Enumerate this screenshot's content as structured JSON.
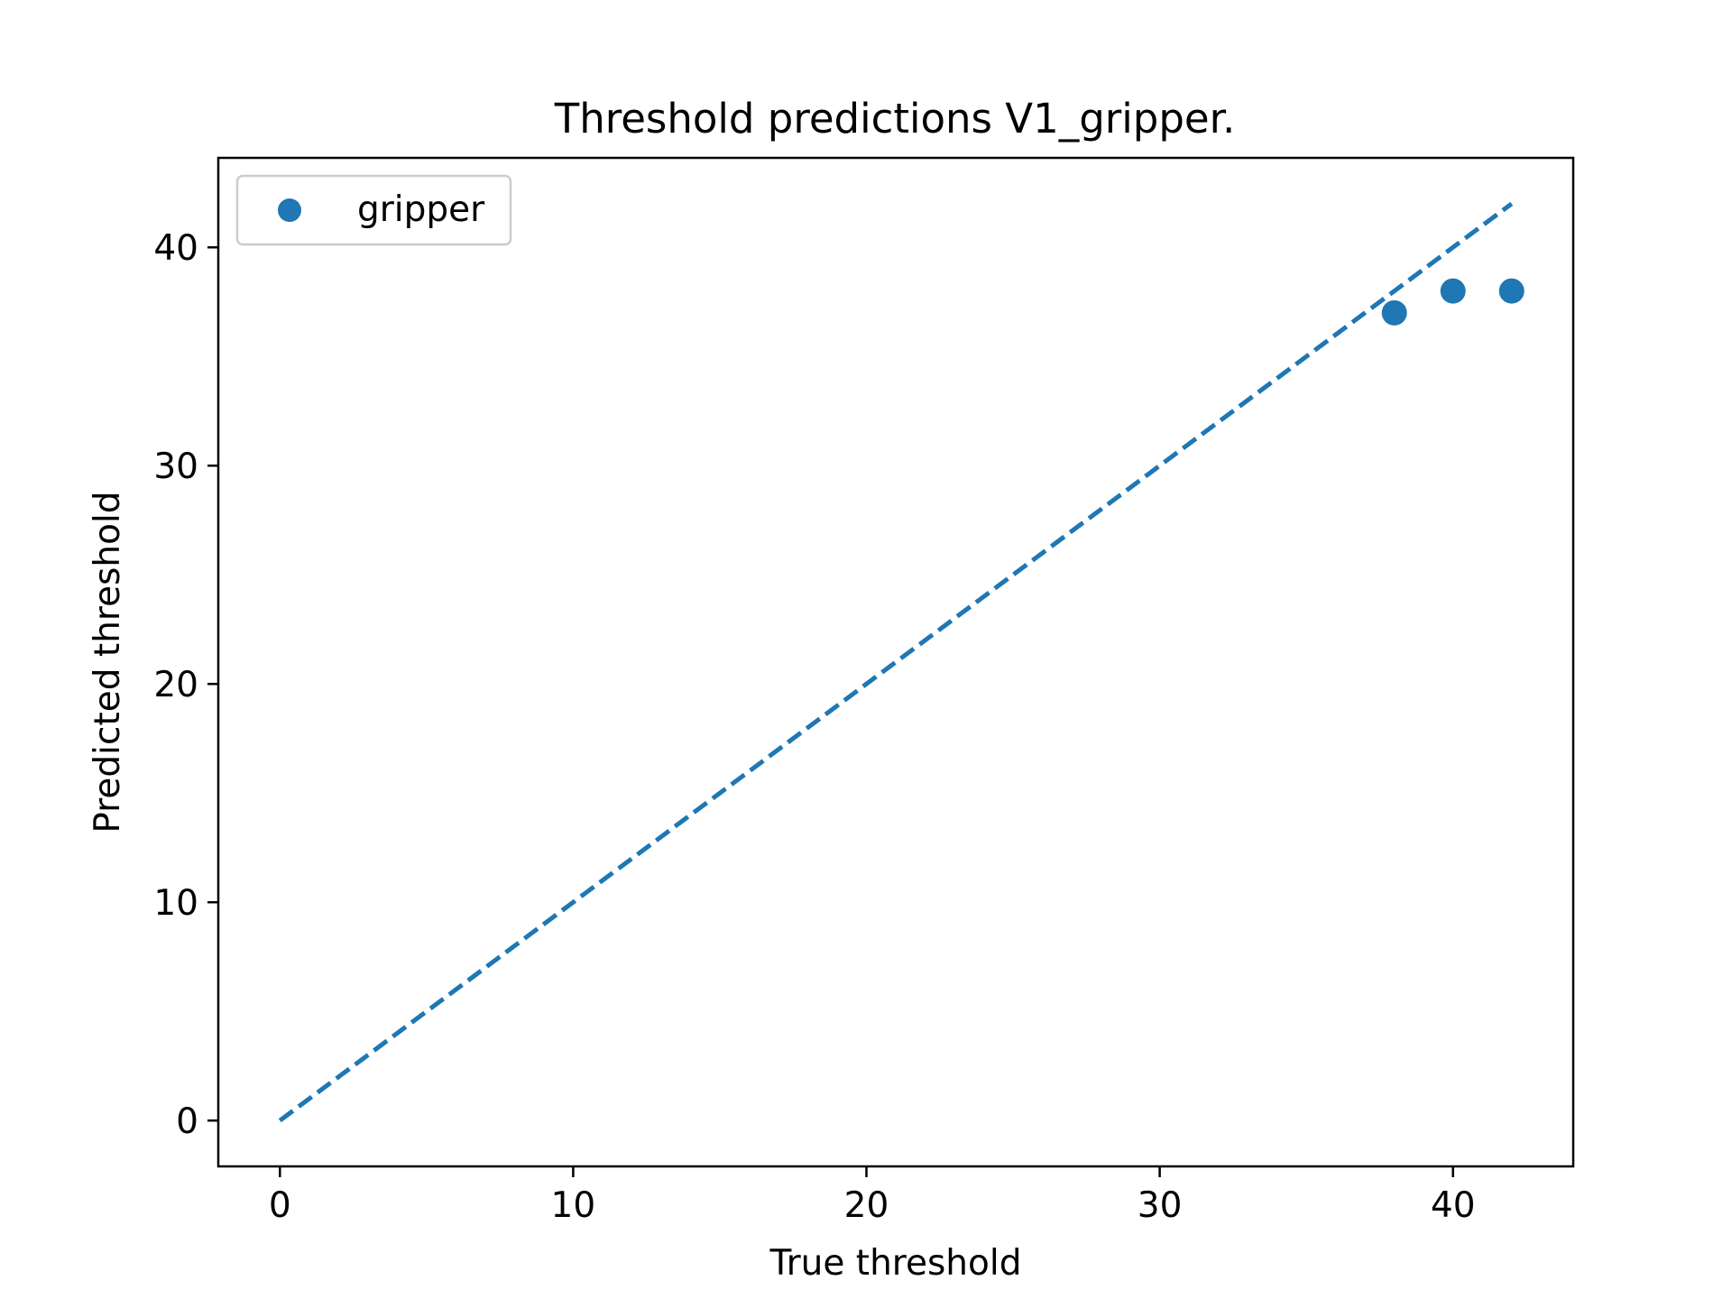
{
  "chart_data": {
    "type": "scatter",
    "title": "Threshold predictions V1_gripper.",
    "xlabel": "True threshold",
    "ylabel": "Predicted threshold",
    "xlim": [
      -2.1,
      44.1
    ],
    "ylim": [
      -2.1,
      44.1
    ],
    "x_ticks": [
      0,
      10,
      20,
      30,
      40
    ],
    "y_ticks": [
      0,
      10,
      20,
      30,
      40
    ],
    "x_tick_labels": [
      "0",
      "10",
      "20",
      "30",
      "40"
    ],
    "y_tick_labels": [
      "0",
      "10",
      "20",
      "30",
      "40"
    ],
    "grid": false,
    "legend_position": "upper left",
    "color": "#1f77b4",
    "series": [
      {
        "name": "gripper",
        "kind": "scatter",
        "points": [
          {
            "x": 38,
            "y": 37
          },
          {
            "x": 40,
            "y": 38
          },
          {
            "x": 42,
            "y": 38
          }
        ]
      }
    ],
    "reference_line": {
      "style": "dashed",
      "from": [
        0,
        0
      ],
      "to": [
        42,
        42
      ]
    }
  }
}
